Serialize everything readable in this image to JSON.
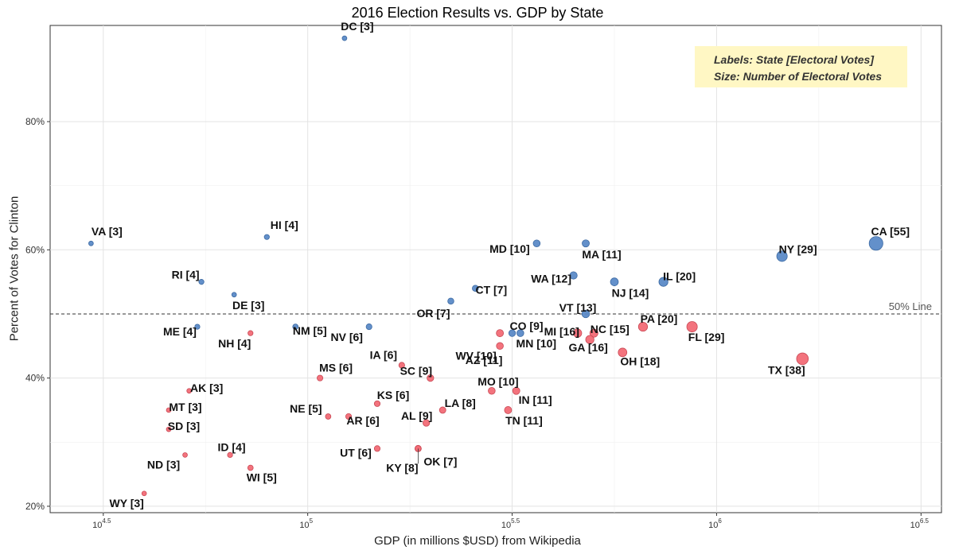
{
  "chart_data": {
    "type": "scatter",
    "title": "2016 Election Results vs. GDP by State",
    "xlabel": "GDP (in millions $USD) from Wikipedia",
    "ylabel": "Percent of Votes for Clinton",
    "x_scale": "log10",
    "xlim_log10": [
      4.37,
      6.55
    ],
    "ylim": [
      19,
      95
    ],
    "x_ticks": [
      {
        "base": "10",
        "exp": "4.5",
        "log10": 4.5
      },
      {
        "base": "10",
        "exp": "5",
        "log10": 5
      },
      {
        "base": "10",
        "exp": "5.5",
        "log10": 5.5
      },
      {
        "base": "10",
        "exp": "6",
        "log10": 6
      },
      {
        "base": "10",
        "exp": "6.5",
        "log10": 6.5
      }
    ],
    "y_ticks": [
      {
        "label": "20%",
        "value": 20
      },
      {
        "label": "40%",
        "value": 40
      },
      {
        "label": "60%",
        "value": 60
      },
      {
        "label": "80%",
        "value": 80
      }
    ],
    "grid": true,
    "reference_line": {
      "y": 50,
      "label": "50% Line",
      "style": "dashed"
    },
    "legend_note": {
      "line1": "Labels: State [Electoral Votes]",
      "line2": "Size: Number of Electoral Votes",
      "placement": "top-right"
    },
    "colors": {
      "blue": "#5b8ac7",
      "red": "#f26b76"
    },
    "points": [
      {
        "label": "VA [3]",
        "ev": 3,
        "x_log10": 4.47,
        "y": 61,
        "party": "blue"
      },
      {
        "label": "DC [3]",
        "ev": 3,
        "x_log10": 5.09,
        "y": 93,
        "party": "blue"
      },
      {
        "label": "HI [4]",
        "ev": 4,
        "x_log10": 4.9,
        "y": 62,
        "party": "blue"
      },
      {
        "label": "RI [4]",
        "ev": 4,
        "x_log10": 4.74,
        "y": 55,
        "party": "blue"
      },
      {
        "label": "DE [3]",
        "ev": 3,
        "x_log10": 4.82,
        "y": 53,
        "party": "blue"
      },
      {
        "label": "ME [4]",
        "ev": 4,
        "x_log10": 4.73,
        "y": 48,
        "party": "blue"
      },
      {
        "label": "NM [5]",
        "ev": 5,
        "x_log10": 4.97,
        "y": 48,
        "party": "blue"
      },
      {
        "label": "NV [6]",
        "ev": 6,
        "x_log10": 5.15,
        "y": 48,
        "party": "blue"
      },
      {
        "label": "OR [7]",
        "ev": 7,
        "x_log10": 5.35,
        "y": 52,
        "party": "blue"
      },
      {
        "label": "CT [7]",
        "ev": 7,
        "x_log10": 5.41,
        "y": 54,
        "party": "blue"
      },
      {
        "label": "MD [10]",
        "ev": 10,
        "x_log10": 5.56,
        "y": 61,
        "party": "blue"
      },
      {
        "label": "MA [11]",
        "ev": 11,
        "x_log10": 5.68,
        "y": 61,
        "party": "blue"
      },
      {
        "label": "WA [12]",
        "ev": 12,
        "x_log10": 5.65,
        "y": 56,
        "party": "blue"
      },
      {
        "label": "CO [9]",
        "ev": 9,
        "x_log10": 5.5,
        "y": 47,
        "party": "blue"
      },
      {
        "label": "MN [10]",
        "ev": 10,
        "x_log10": 5.52,
        "y": 47,
        "party": "blue"
      },
      {
        "label": "VT [13]",
        "ev": 13,
        "x_log10": 5.68,
        "y": 50,
        "party": "blue"
      },
      {
        "label": "NJ [14]",
        "ev": 14,
        "x_log10": 5.75,
        "y": 55,
        "party": "blue"
      },
      {
        "label": "IL [20]",
        "ev": 20,
        "x_log10": 5.87,
        "y": 55,
        "party": "blue"
      },
      {
        "label": "NY [29]",
        "ev": 29,
        "x_log10": 6.16,
        "y": 59,
        "party": "blue"
      },
      {
        "label": "CA [55]",
        "ev": 55,
        "x_log10": 6.39,
        "y": 61,
        "party": "blue"
      },
      {
        "label": "NH [4]",
        "ev": 4,
        "x_log10": 4.86,
        "y": 47,
        "party": "red"
      },
      {
        "label": "AK [3]",
        "ev": 3,
        "x_log10": 4.71,
        "y": 38,
        "party": "red"
      },
      {
        "label": "MT [3]",
        "ev": 3,
        "x_log10": 4.66,
        "y": 35,
        "party": "red"
      },
      {
        "label": "SD [3]",
        "ev": 3,
        "x_log10": 4.66,
        "y": 32,
        "party": "red"
      },
      {
        "label": "ND [3]",
        "ev": 3,
        "x_log10": 4.7,
        "y": 28,
        "party": "red"
      },
      {
        "label": "WY [3]",
        "ev": 3,
        "x_log10": 4.6,
        "y": 22,
        "party": "red"
      },
      {
        "label": "ID [4]",
        "ev": 4,
        "x_log10": 4.81,
        "y": 28,
        "party": "red"
      },
      {
        "label": "WI [5]",
        "ev": 5,
        "x_log10": 4.86,
        "y": 26,
        "party": "red"
      },
      {
        "label": "MS [6]",
        "ev": 6,
        "x_log10": 5.03,
        "y": 40,
        "party": "red"
      },
      {
        "label": "NE [5]",
        "ev": 5,
        "x_log10": 5.05,
        "y": 34,
        "party": "red"
      },
      {
        "label": "AR [6]",
        "ev": 6,
        "x_log10": 5.1,
        "y": 34,
        "party": "red"
      },
      {
        "label": "KS [6]",
        "ev": 6,
        "x_log10": 5.17,
        "y": 36,
        "party": "red"
      },
      {
        "label": "UT [6]",
        "ev": 6,
        "x_log10": 5.17,
        "y": 29,
        "party": "red"
      },
      {
        "label": "IA [6]",
        "ev": 6,
        "x_log10": 5.23,
        "y": 42,
        "party": "red"
      },
      {
        "label": "SC [9]",
        "ev": 9,
        "x_log10": 5.3,
        "y": 40,
        "party": "red"
      },
      {
        "label": "AL [9]",
        "ev": 9,
        "x_log10": 5.29,
        "y": 33,
        "party": "red"
      },
      {
        "label": "KY [8]",
        "ev": 8,
        "x_log10": 5.27,
        "y": 29,
        "party": "red"
      },
      {
        "label": "OK [7]",
        "ev": 7,
        "x_log10": 5.27,
        "y": 29,
        "party": "red"
      },
      {
        "label": "LA [8]",
        "ev": 8,
        "x_log10": 5.33,
        "y": 35,
        "party": "red"
      },
      {
        "label": "MO [10]",
        "ev": 10,
        "x_log10": 5.45,
        "y": 38,
        "party": "red"
      },
      {
        "label": "IN [11]",
        "ev": 11,
        "x_log10": 5.51,
        "y": 38,
        "party": "red"
      },
      {
        "label": "TN [11]",
        "ev": 11,
        "x_log10": 5.49,
        "y": 35,
        "party": "red"
      },
      {
        "label": "WV [10]",
        "ev": 10,
        "x_log10": 5.47,
        "y": 45,
        "party": "red"
      },
      {
        "label": "AZ [11]",
        "ev": 11,
        "x_log10": 5.47,
        "y": 47,
        "party": "red"
      },
      {
        "label": "MI [16]",
        "ev": 16,
        "x_log10": 5.66,
        "y": 47,
        "party": "red"
      },
      {
        "label": "NC [15]",
        "ev": 15,
        "x_log10": 5.7,
        "y": 47,
        "party": "red"
      },
      {
        "label": "GA [16]",
        "ev": 16,
        "x_log10": 5.69,
        "y": 46,
        "party": "red"
      },
      {
        "label": "OH [18]",
        "ev": 18,
        "x_log10": 5.77,
        "y": 44,
        "party": "red"
      },
      {
        "label": "PA [20]",
        "ev": 20,
        "x_log10": 5.82,
        "y": 48,
        "party": "red"
      },
      {
        "label": "FL [29]",
        "ev": 29,
        "x_log10": 5.94,
        "y": 48,
        "party": "red"
      },
      {
        "label": "TX [38]",
        "ev": 38,
        "x_log10": 6.21,
        "y": 43,
        "party": "red"
      }
    ]
  }
}
